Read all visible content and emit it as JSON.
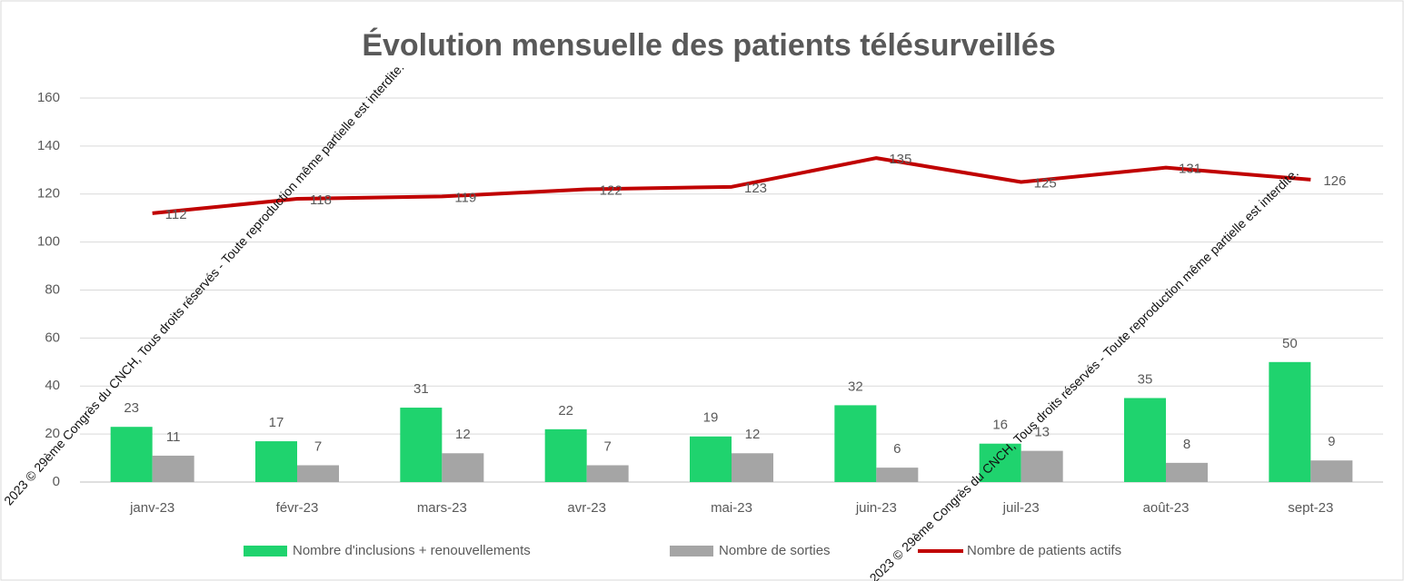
{
  "chart_data": {
    "type": "combo",
    "title": "Évolution mensuelle des patients télésurveillés",
    "categories": [
      "janv-23",
      "févr-23",
      "mars-23",
      "avr-23",
      "mai-23",
      "juin-23",
      "juil-23",
      "août-23",
      "sept-23"
    ],
    "series": [
      {
        "name": "Nombre d'inclusions + renouvellements",
        "type": "bar",
        "color": "#1fd36e",
        "values": [
          23,
          17,
          31,
          22,
          19,
          32,
          16,
          35,
          50
        ]
      },
      {
        "name": "Nombre de sorties",
        "type": "bar",
        "color": "#a5a5a5",
        "values": [
          11,
          7,
          12,
          7,
          12,
          6,
          13,
          8,
          9
        ]
      },
      {
        "name": "Nombre de patients actifs",
        "type": "line",
        "color": "#c00000",
        "values": [
          112,
          118,
          119,
          122,
          123,
          135,
          125,
          131,
          126
        ]
      }
    ],
    "ylim": [
      0,
      160
    ],
    "yticks": [
      0,
      20,
      40,
      60,
      80,
      100,
      120,
      140,
      160
    ],
    "grid": true,
    "legend": "bottom",
    "watermark": "2023 © 29ème Congrès du CNCH, Tous droits réservés - Toute reproduction même partielle est interdite."
  }
}
